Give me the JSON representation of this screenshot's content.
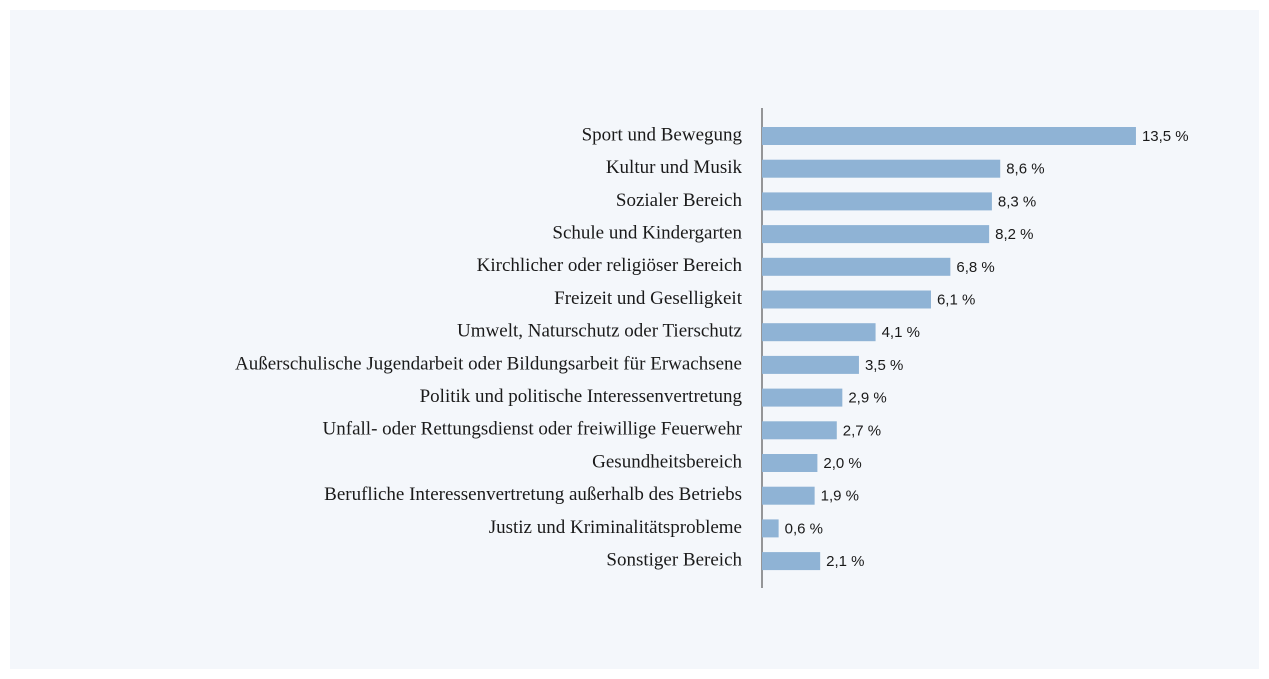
{
  "chart_data": {
    "type": "hbar",
    "categories": [
      "Sport und Bewegung",
      "Kultur und Musik",
      "Sozialer Bereich",
      "Schule und Kindergarten",
      "Kirchlicher oder religiöser Bereich",
      "Freizeit und Geselligkeit",
      "Umwelt, Naturschutz oder Tierschutz",
      "Außerschulische Jugendarbeit oder Bildungsarbeit für Erwachsene",
      "Politik und politische Interessenvertretung",
      "Unfall- oder Rettungsdienst oder freiwillige Feuerwehr",
      "Gesundheitsbereich",
      "Berufliche Interessenvertretung außerhalb des Betriebs",
      "Justiz und Kriminalitätsprobleme",
      "Sonstiger Bereich"
    ],
    "values": [
      13.5,
      8.6,
      8.3,
      8.2,
      6.8,
      6.1,
      4.1,
      3.5,
      2.9,
      2.7,
      2.0,
      1.9,
      0.6,
      2.1
    ],
    "value_labels": [
      "13,5 %",
      "8,6 %",
      "8,3 %",
      "8,2 %",
      "6,8 %",
      "6,1 %",
      "4,1 %",
      "3,5 %",
      "2,9 %",
      "2,7 %",
      "2,0 %",
      "1,9 %",
      "0,6 %",
      "2,1 %"
    ],
    "color": "#8fb3d5"
  }
}
